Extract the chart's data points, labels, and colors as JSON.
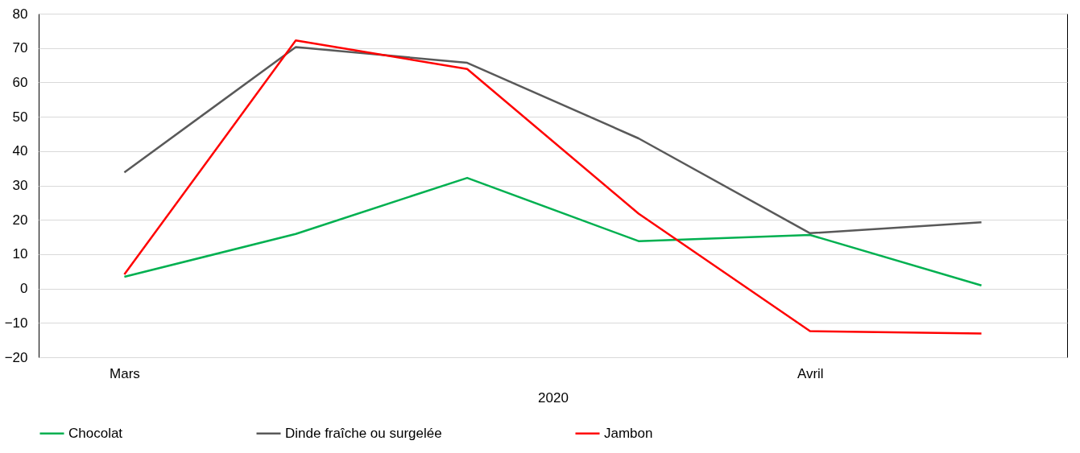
{
  "chart_data": {
    "type": "line",
    "xlabel": "2020",
    "categories": [
      "Mars",
      null,
      null,
      null,
      "Avril",
      null
    ],
    "series": [
      {
        "name": "Chocolat",
        "color": "#00b050",
        "values": [
          3.4,
          15.9,
          32.2,
          13.8,
          15.6,
          0.9
        ]
      },
      {
        "name": "Dinde fraîche ou surgelée",
        "color": "#595959",
        "values": [
          33.8,
          70.3,
          65.7,
          43.7,
          16.1,
          19.3
        ]
      },
      {
        "name": "Jambon",
        "color": "#ff0000",
        "values": [
          4.1,
          72.2,
          63.9,
          21.8,
          -12.4,
          -13.1
        ]
      }
    ],
    "ylim": [
      -20,
      80
    ],
    "yticks": [
      -20,
      -10,
      0,
      10,
      20,
      30,
      40,
      50,
      60,
      70,
      80
    ],
    "grid": "y",
    "legend": "bottom",
    "marker": "none",
    "line_style": "solid"
  }
}
